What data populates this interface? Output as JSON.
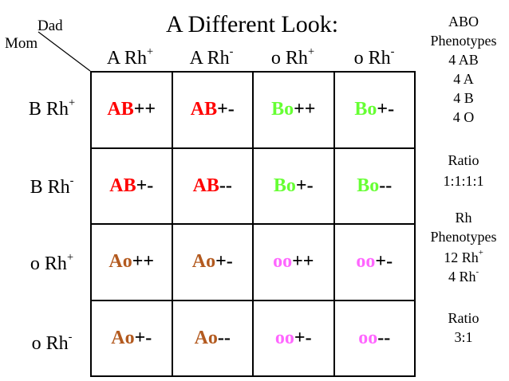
{
  "title": "A Different Look:",
  "corner": {
    "dad": "Dad",
    "mom": "Mom"
  },
  "columns": [
    {
      "base": "A Rh",
      "sup": "+"
    },
    {
      "base": "A Rh",
      "sup": "-"
    },
    {
      "base": "o Rh",
      "sup": "+"
    },
    {
      "base": "o Rh",
      "sup": "-"
    }
  ],
  "rows": [
    {
      "base": "B Rh",
      "sup": "+"
    },
    {
      "base": "B Rh",
      "sup": "-"
    },
    {
      "base": "o Rh",
      "sup": "+"
    },
    {
      "base": "o Rh",
      "sup": "-"
    }
  ],
  "colors": {
    "AB": "#ff0000",
    "Bo": "#66ff33",
    "Ao": "#b35a1f",
    "oo": "#ff66ff"
  },
  "cells": [
    [
      {
        "allele": "AB",
        "rh": "++"
      },
      {
        "allele": "AB",
        "rh": "+-"
      },
      {
        "allele": "Bo",
        "rh": "++"
      },
      {
        "allele": "Bo",
        "rh": "+-"
      }
    ],
    [
      {
        "allele": "AB",
        "rh": "+-"
      },
      {
        "allele": "AB",
        "rh": "--"
      },
      {
        "allele": "Bo",
        "rh": "+-"
      },
      {
        "allele": "Bo",
        "rh": "--"
      }
    ],
    [
      {
        "allele": "Ao",
        "rh": "++"
      },
      {
        "allele": "Ao",
        "rh": "+-"
      },
      {
        "allele": "oo",
        "rh": "++"
      },
      {
        "allele": "oo",
        "rh": "+-"
      }
    ],
    [
      {
        "allele": "Ao",
        "rh": "+-"
      },
      {
        "allele": "Ao",
        "rh": "--"
      },
      {
        "allele": "oo",
        "rh": "+-"
      },
      {
        "allele": "oo",
        "rh": "--"
      }
    ]
  ],
  "side": {
    "abo_heading_1": "ABO",
    "abo_heading_2": "Phenotypes",
    "abo_items": [
      "4 AB",
      "4 A",
      "4 B",
      "4 O"
    ],
    "ratio_label_1": "Ratio",
    "ratio_value_1": "1:1:1:1",
    "rh_heading_1": "Rh",
    "rh_heading_2": "Phenotypes",
    "rh_item_1": {
      "base": "12 Rh",
      "sup": "+"
    },
    "rh_item_2": {
      "base": "4 Rh",
      "sup": "-"
    },
    "ratio_label_2": "Ratio",
    "ratio_value_2": "3:1"
  }
}
